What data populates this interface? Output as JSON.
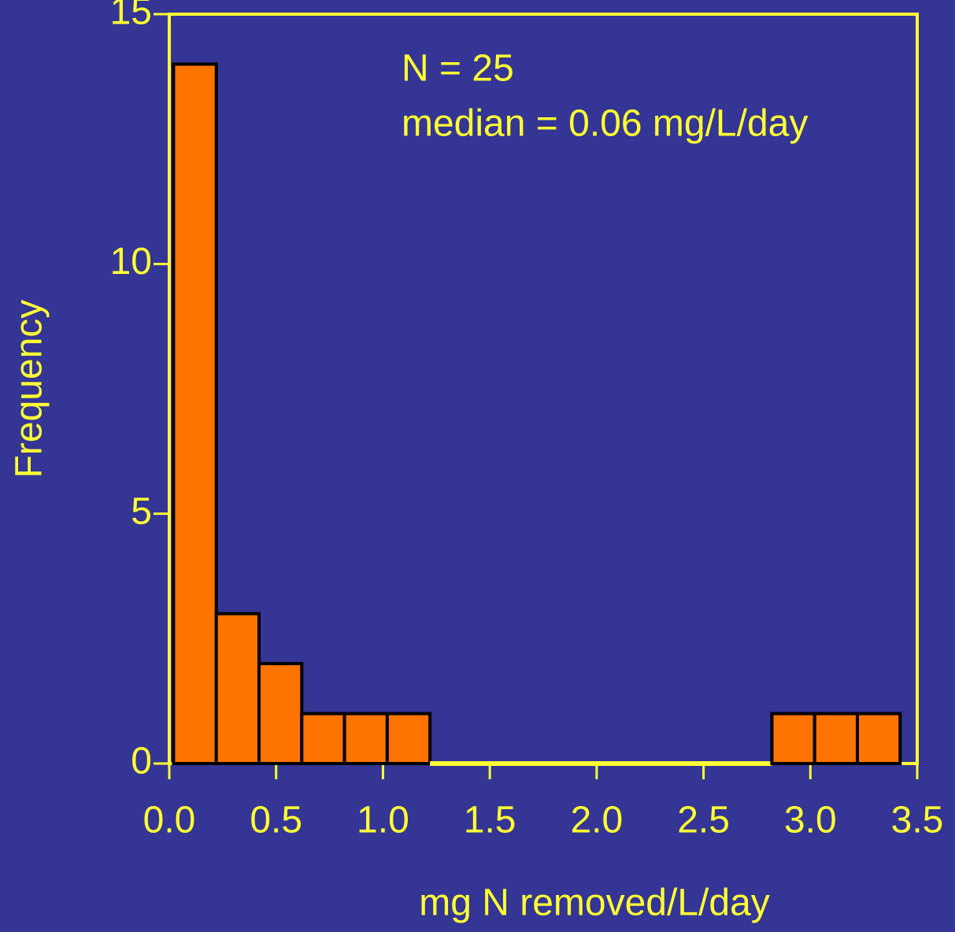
{
  "chart_data": {
    "type": "histogram",
    "xlabel": "mg N removed/L/day",
    "ylabel": "Frequency",
    "annotations": [
      "N = 25",
      "median = 0.06 mg/L/day"
    ],
    "bins": [
      0.02,
      0.22,
      0.42,
      0.62,
      0.82,
      1.02,
      1.22,
      1.42,
      1.62,
      1.82,
      2.02,
      2.22,
      2.42,
      2.62,
      2.82,
      3.02,
      3.22,
      3.42
    ],
    "values": [
      14,
      3,
      2,
      1,
      1,
      1,
      0,
      0,
      0,
      0,
      0,
      0,
      0,
      0,
      1,
      1,
      1
    ],
    "color": "#ff7300",
    "xlim": [
      0,
      3.5
    ],
    "ylim": [
      0,
      15
    ],
    "xticks": [
      {
        "value": 0,
        "label": "0.0"
      },
      0.5,
      {
        "value": 1,
        "label": "1.0"
      },
      1.5,
      {
        "value": 2,
        "label": "2.0"
      },
      2.5,
      {
        "value": 3,
        "label": "3.0"
      },
      3.5
    ],
    "yticks": [
      0,
      5,
      10,
      15
    ]
  }
}
